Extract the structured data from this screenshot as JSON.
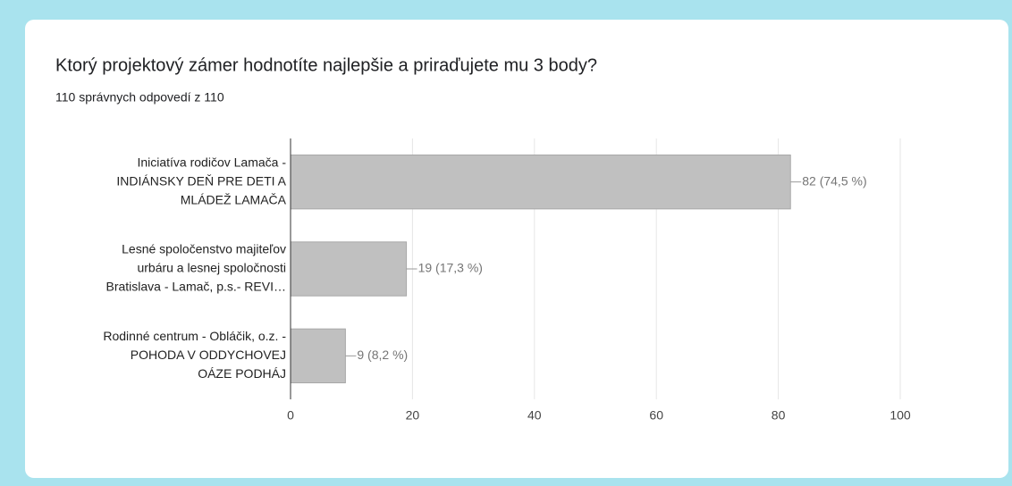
{
  "chart_data": {
    "type": "barh",
    "title": "Ktorý projektový zámer hodnotíte najlepšie a priraďujete mu 3 body?",
    "subtitle": "110 správnych odpovedí z 110",
    "categories": [
      [
        "Iniciatíva rodičov Lamača -",
        "INDIÁNSKY DEŇ PRE DETI A",
        "MLÁDEŽ LAMAČA"
      ],
      [
        "Lesné spoločenstvo majiteľov",
        "urbáru a lesnej spoločnosti",
        "Bratislava - Lamač, p.s.- REVI…"
      ],
      [
        "Rodinné centrum - Obláčik, o.z. -",
        "POHODA V ODDYCHOVEJ",
        "OÁZE PODHÁJ"
      ]
    ],
    "values": [
      82,
      19,
      9
    ],
    "value_labels": [
      "82 (74,5 %)",
      "19 (17,3 %)",
      "9 (8,2 %)"
    ],
    "color": "#c0c0c0",
    "xlim": [
      0,
      100
    ],
    "xticks": [
      0,
      20,
      40,
      60,
      80,
      100
    ],
    "grid": true
  }
}
